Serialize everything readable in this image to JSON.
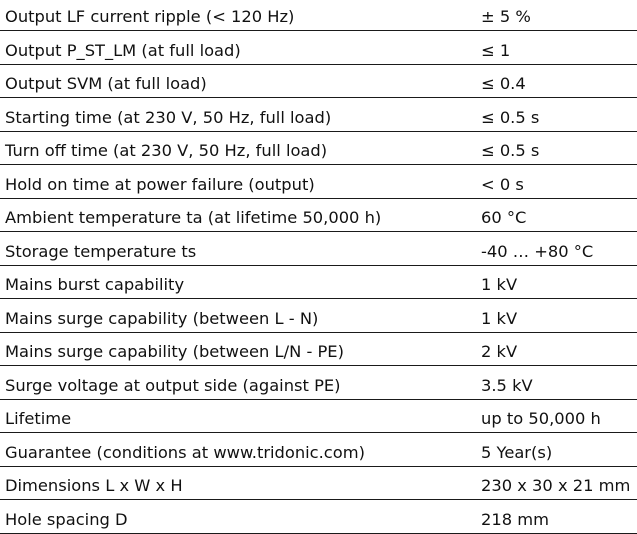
{
  "specs": [
    {
      "parameter": "Output LF current ripple (< 120 Hz)",
      "value": "± 5 %"
    },
    {
      "parameter": "Output P_ST_LM (at full load)",
      "value": "≤ 1"
    },
    {
      "parameter": "Output SVM (at full load)",
      "value": "≤ 0.4"
    },
    {
      "parameter": "Starting time (at 230 V, 50 Hz, full load)",
      "value": "≤ 0.5 s"
    },
    {
      "parameter": "Turn off time (at 230 V, 50 Hz, full load)",
      "value": "≤ 0.5 s"
    },
    {
      "parameter": "Hold on time at power failure (output)",
      "value": "< 0 s"
    },
    {
      "parameter": "Ambient temperature ta (at lifetime 50,000 h)",
      "value": "60 °C"
    },
    {
      "parameter": "Storage temperature ts",
      "value": "-40 … +80 °C"
    },
    {
      "parameter": "Mains burst capability",
      "value": "1 kV"
    },
    {
      "parameter": "Mains surge capability (between L - N)",
      "value": "1 kV"
    },
    {
      "parameter": "Mains surge capability (between L/N - PE)",
      "value": "2 kV"
    },
    {
      "parameter": "Surge voltage at output side (against PE)",
      "value": "3.5 kV"
    },
    {
      "parameter": "Lifetime",
      "value": "up to 50,000 h"
    },
    {
      "parameter": "Guarantee (conditions at www.tridonic.com)",
      "value": "5 Year(s)"
    },
    {
      "parameter": "Dimensions L x W x H",
      "value": "230 x 30 x 21 mm"
    },
    {
      "parameter": "Hole spacing D",
      "value": "218 mm"
    }
  ]
}
